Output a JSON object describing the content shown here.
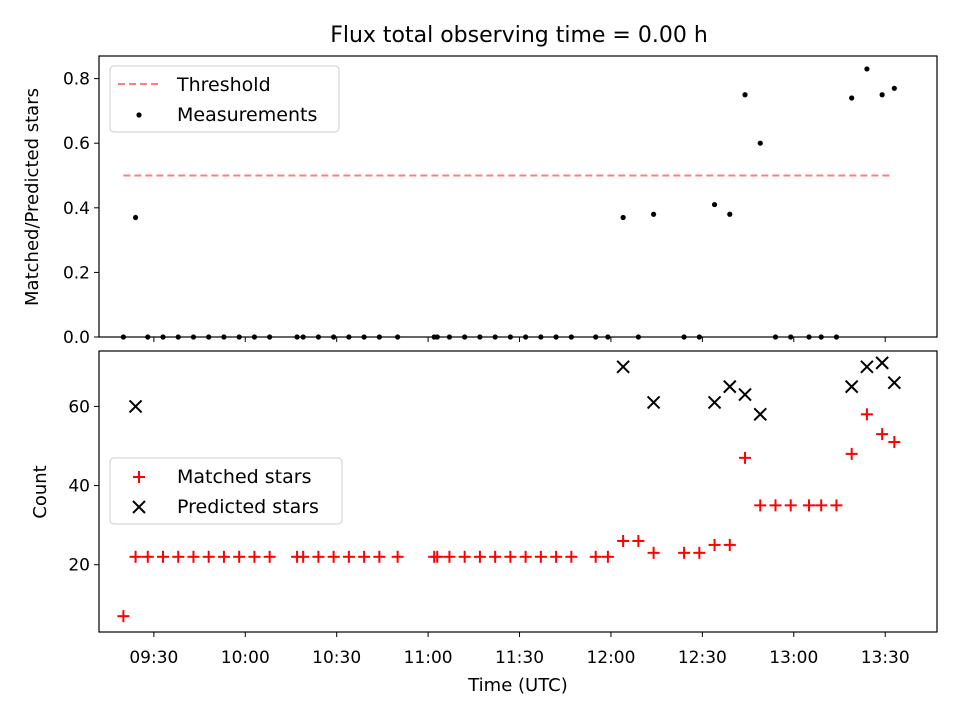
{
  "title": "Flux total observing time = 0.00 h",
  "chart_data": [
    {
      "type": "scatter",
      "panel": "top",
      "ylabel": "Matched/Predicted stars",
      "xlabel": "",
      "xlim": [
        "09:12",
        "13:47"
      ],
      "ylim": [
        0,
        0.87
      ],
      "yticks": [
        0.0,
        0.2,
        0.4,
        0.6,
        0.8
      ],
      "ytick_labels": [
        "0.0",
        "0.2",
        "0.4",
        "0.6",
        "0.8"
      ],
      "legend": {
        "position": "upper left",
        "entries": [
          {
            "label": "Threshold",
            "marker": "dashed-line",
            "color": "#ff7f7f"
          },
          {
            "label": "Measurements",
            "marker": "dot",
            "color": "#000000"
          }
        ]
      },
      "threshold": {
        "name": "Threshold",
        "value": 0.5,
        "x_start": "09:20",
        "x_end": "13:32",
        "color": "#ff7f7f"
      },
      "series": [
        {
          "name": "Measurements",
          "color": "#000000",
          "x": [
            "09:20",
            "09:24",
            "09:28",
            "09:33",
            "09:38",
            "09:43",
            "09:48",
            "09:53",
            "09:58",
            "10:03",
            "10:08",
            "10:17",
            "10:19",
            "10:24",
            "10:29",
            "10:34",
            "10:39",
            "10:44",
            "10:50",
            "11:02",
            "11:03",
            "11:07",
            "11:12",
            "11:17",
            "11:22",
            "11:27",
            "11:32",
            "11:37",
            "11:42",
            "11:47",
            "11:55",
            "11:59",
            "12:04",
            "12:09",
            "12:14",
            "12:24",
            "12:29",
            "12:34",
            "12:39",
            "12:44",
            "12:49",
            "12:54",
            "12:59",
            "13:05",
            "13:09",
            "13:14",
            "13:19",
            "13:24",
            "13:29",
            "13:33"
          ],
          "y": [
            0.0,
            0.37,
            0.0,
            0.0,
            0.0,
            0.0,
            0.0,
            0.0,
            0.0,
            0.0,
            0.0,
            0.0,
            0.0,
            0.0,
            0.0,
            0.0,
            0.0,
            0.0,
            0.0,
            0.0,
            0.0,
            0.0,
            0.0,
            0.0,
            0.0,
            0.0,
            0.0,
            0.0,
            0.0,
            0.0,
            0.0,
            0.0,
            0.37,
            0.0,
            0.38,
            0.0,
            0.0,
            0.41,
            0.38,
            0.75,
            0.6,
            0.0,
            0.0,
            0.0,
            0.0,
            0.0,
            0.74,
            0.83,
            0.75,
            0.77
          ]
        }
      ]
    },
    {
      "type": "scatter",
      "panel": "bottom",
      "ylabel": "Count",
      "xlabel": "Time (UTC)",
      "xlim": [
        "09:12",
        "13:47"
      ],
      "ylim": [
        3,
        74
      ],
      "yticks": [
        20,
        40,
        60
      ],
      "ytick_labels": [
        "20",
        "40",
        "60"
      ],
      "xticks": [
        "09:30",
        "10:00",
        "10:30",
        "11:00",
        "11:30",
        "12:00",
        "12:30",
        "13:00",
        "13:30"
      ],
      "xtick_labels": [
        "09:30",
        "10:00",
        "10:30",
        "11:00",
        "11:30",
        "12:00",
        "12:30",
        "13:00",
        "13:30"
      ],
      "legend": {
        "position": "center left",
        "entries": [
          {
            "label": "Matched stars",
            "marker": "plus",
            "color": "#ff0000"
          },
          {
            "label": "Predicted stars",
            "marker": "x",
            "color": "#000000"
          }
        ]
      },
      "series": [
        {
          "name": "Matched stars",
          "marker": "plus",
          "color": "#ff0000",
          "x": [
            "09:20",
            "09:24",
            "09:28",
            "09:33",
            "09:38",
            "09:43",
            "09:48",
            "09:53",
            "09:58",
            "10:03",
            "10:08",
            "10:17",
            "10:19",
            "10:24",
            "10:29",
            "10:34",
            "10:39",
            "10:44",
            "10:50",
            "11:02",
            "11:03",
            "11:07",
            "11:12",
            "11:17",
            "11:22",
            "11:27",
            "11:32",
            "11:37",
            "11:42",
            "11:47",
            "11:55",
            "11:59",
            "12:04",
            "12:09",
            "12:14",
            "12:24",
            "12:29",
            "12:34",
            "12:39",
            "12:44",
            "12:49",
            "12:54",
            "12:59",
            "13:05",
            "13:09",
            "13:14",
            "13:19",
            "13:24",
            "13:29",
            "13:33"
          ],
          "y": [
            7,
            22,
            22,
            22,
            22,
            22,
            22,
            22,
            22,
            22,
            22,
            22,
            22,
            22,
            22,
            22,
            22,
            22,
            22,
            22,
            22,
            22,
            22,
            22,
            22,
            22,
            22,
            22,
            22,
            22,
            22,
            22,
            26,
            26,
            23,
            23,
            23,
            25,
            25,
            47,
            35,
            35,
            35,
            35,
            35,
            35,
            48,
            58,
            53,
            51
          ]
        },
        {
          "name": "Predicted stars",
          "marker": "x",
          "color": "#000000",
          "x": [
            "09:24",
            "12:04",
            "12:14",
            "12:34",
            "12:39",
            "12:44",
            "12:49",
            "13:19",
            "13:24",
            "13:29",
            "13:33"
          ],
          "y": [
            60,
            70,
            61,
            61,
            65,
            63,
            58,
            65,
            70,
            71,
            66
          ]
        }
      ]
    }
  ]
}
